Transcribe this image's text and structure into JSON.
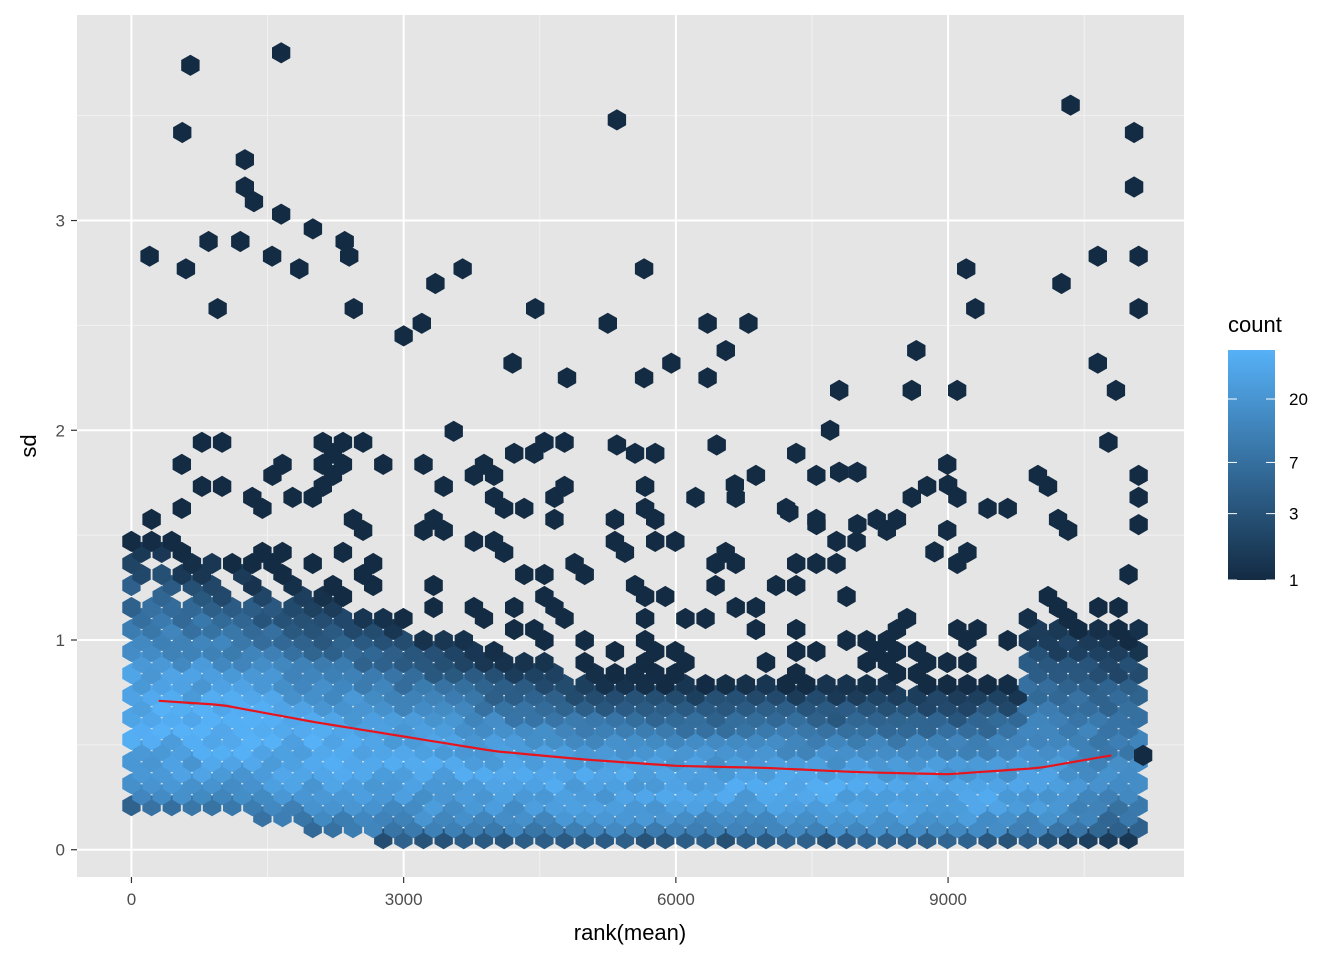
{
  "chart_data": {
    "type": "hexbin",
    "xlabel": "rank(mean)",
    "ylabel": "sd",
    "xlim": [
      -600,
      11600
    ],
    "ylim": [
      -0.13,
      3.98
    ],
    "x_ticks": [
      {
        "value": 0,
        "label": "0"
      },
      {
        "value": 3000,
        "label": "3000"
      },
      {
        "value": 6000,
        "label": "6000"
      },
      {
        "value": 9000,
        "label": "9000"
      }
    ],
    "y_ticks": [
      {
        "value": 0,
        "label": "0"
      },
      {
        "value": 1,
        "label": "1"
      },
      {
        "value": 2,
        "label": "2"
      },
      {
        "value": 3,
        "label": "3"
      }
    ],
    "grid": true,
    "panel_background": "#e5e5e5",
    "fill_low": "#132b43",
    "fill_high": "#56b1f7",
    "legend": {
      "title": "count",
      "position": "right",
      "scale": "log",
      "range": [
        1,
        45
      ],
      "breaks": [
        {
          "value": 1,
          "label": "1"
        },
        {
          "value": 3,
          "label": "3"
        },
        {
          "value": 7,
          "label": "7"
        },
        {
          "value": 20,
          "label": "20"
        }
      ]
    },
    "density_profile": {
      "x": [
        300,
        1000,
        2000,
        3000,
        4000,
        5000,
        6000,
        7000,
        8000,
        9000,
        10000,
        10800
      ],
      "sd_center": [
        0.62,
        0.6,
        0.52,
        0.45,
        0.38,
        0.34,
        0.31,
        0.3,
        0.28,
        0.27,
        0.3,
        0.36
      ],
      "peak_count": [
        40,
        42,
        38,
        35,
        33,
        32,
        32,
        33,
        34,
        35,
        28,
        14
      ]
    },
    "outliers": [
      {
        "x": 650,
        "y": 3.74
      },
      {
        "x": 1650,
        "y": 3.8
      },
      {
        "x": 560,
        "y": 3.42
      },
      {
        "x": 1250,
        "y": 3.29
      },
      {
        "x": 1250,
        "y": 3.16
      },
      {
        "x": 1350,
        "y": 3.09
      },
      {
        "x": 1650,
        "y": 3.03
      },
      {
        "x": 2000,
        "y": 2.96
      },
      {
        "x": 5350,
        "y": 3.48
      },
      {
        "x": 10350,
        "y": 3.55
      },
      {
        "x": 11050,
        "y": 3.42
      },
      {
        "x": 11050,
        "y": 3.16
      },
      {
        "x": 850,
        "y": 2.9
      },
      {
        "x": 1200,
        "y": 2.9
      },
      {
        "x": 2350,
        "y": 2.9
      },
      {
        "x": 1550,
        "y": 2.83
      },
      {
        "x": 2400,
        "y": 2.83
      },
      {
        "x": 200,
        "y": 2.83
      },
      {
        "x": 10650,
        "y": 2.83
      },
      {
        "x": 11100,
        "y": 2.83
      },
      {
        "x": 600,
        "y": 2.77
      },
      {
        "x": 1850,
        "y": 2.77
      },
      {
        "x": 3650,
        "y": 2.77
      },
      {
        "x": 5650,
        "y": 2.77
      },
      {
        "x": 9200,
        "y": 2.77
      },
      {
        "x": 3350,
        "y": 2.7
      },
      {
        "x": 10250,
        "y": 2.7
      },
      {
        "x": 950,
        "y": 2.58
      },
      {
        "x": 2450,
        "y": 2.58
      },
      {
        "x": 4450,
        "y": 2.58
      },
      {
        "x": 9300,
        "y": 2.58
      },
      {
        "x": 11100,
        "y": 2.58
      },
      {
        "x": 3200,
        "y": 2.51
      },
      {
        "x": 5250,
        "y": 2.51
      },
      {
        "x": 6350,
        "y": 2.51
      },
      {
        "x": 6800,
        "y": 2.51
      },
      {
        "x": 3000,
        "y": 2.45
      },
      {
        "x": 8650,
        "y": 2.38
      },
      {
        "x": 6550,
        "y": 2.38
      },
      {
        "x": 5950,
        "y": 2.32
      },
      {
        "x": 4200,
        "y": 2.32
      },
      {
        "x": 10650,
        "y": 2.32
      },
      {
        "x": 4800,
        "y": 2.25
      },
      {
        "x": 5650,
        "y": 2.25
      },
      {
        "x": 6350,
        "y": 2.25
      },
      {
        "x": 7800,
        "y": 2.19
      },
      {
        "x": 8600,
        "y": 2.19
      },
      {
        "x": 9100,
        "y": 2.19
      },
      {
        "x": 10850,
        "y": 2.19
      },
      {
        "x": 7700,
        "y": 2.0
      },
      {
        "x": 5350,
        "y": 1.93
      },
      {
        "x": 6450,
        "y": 1.93
      },
      {
        "x": 7800,
        "y": 1.8
      },
      {
        "x": 8000,
        "y": 1.8
      },
      {
        "x": 9000,
        "y": 1.74
      },
      {
        "x": 6650,
        "y": 1.74
      },
      {
        "x": 8600,
        "y": 1.68
      },
      {
        "x": 7250,
        "y": 1.61
      },
      {
        "x": 8000,
        "y": 1.55
      },
      {
        "x": 7550,
        "y": 1.55
      },
      {
        "x": 8850,
        "y": 1.42
      },
      {
        "x": 11100,
        "y": 1.55
      },
      {
        "x": 11150,
        "y": 0.45
      }
    ]
  }
}
